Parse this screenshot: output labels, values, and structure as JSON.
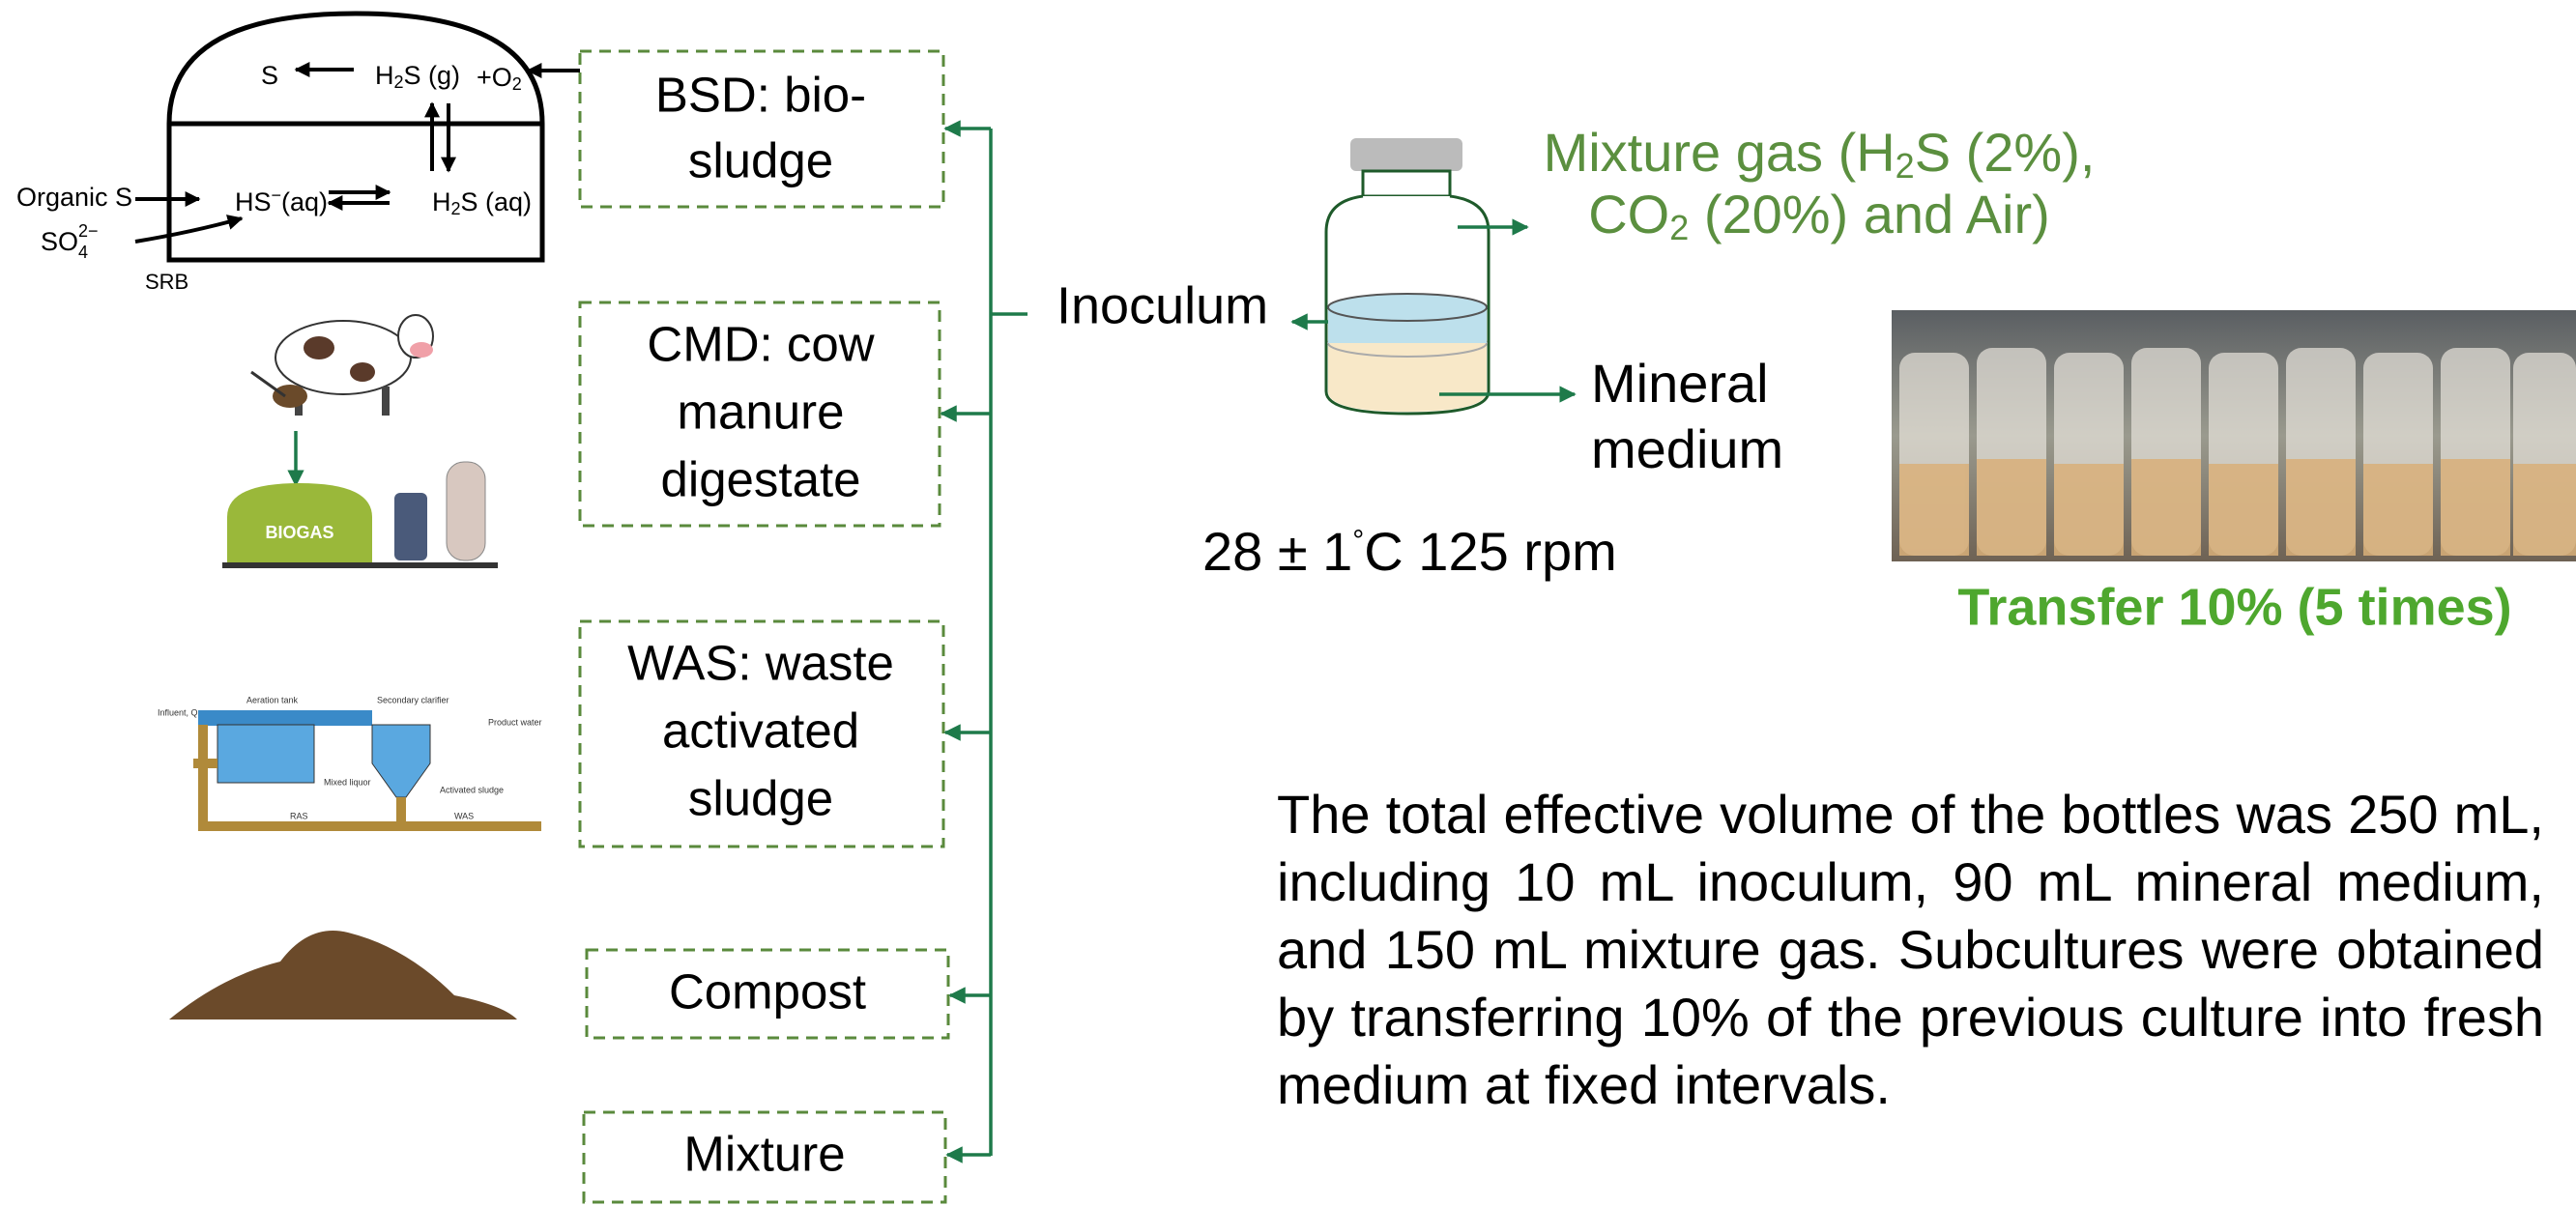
{
  "reactor": {
    "s": "S",
    "h2s_g": [
      "H",
      "2",
      "S (g)"
    ],
    "o2": [
      "+O",
      "2"
    ],
    "hs_aq": [
      "HS",
      "−",
      "(aq)"
    ],
    "h2s_aq": [
      "H",
      "2",
      "S (aq)"
    ],
    "organic_s": "Organic S",
    "sulfate": [
      "SO",
      "4",
      "2−"
    ],
    "srb": "SRB"
  },
  "sources": [
    {
      "lines": [
        "BSD: bio-",
        "sludge"
      ]
    },
    {
      "lines": [
        "CMD: cow",
        "manure",
        "digestate"
      ]
    },
    {
      "lines": [
        "WAS: waste",
        "activated",
        "sludge"
      ]
    },
    {
      "lines": [
        "Compost"
      ]
    },
    {
      "lines": [
        "Mixture"
      ]
    }
  ],
  "biogas_label": "BIOGAS",
  "was_schematic": {
    "influent": "Influent, Q",
    "aeration_tank": "Aeration tank",
    "secondary_clarifier": "Secondary clarifier",
    "product_water": "Product water",
    "mixed_liquor": "Mixed liquor",
    "activated_sludge": "Activated sludge",
    "ras": "RAS",
    "was": "WAS"
  },
  "inoculum": "Inoculum",
  "gas_label": {
    "line1": [
      "Mixture gas (H",
      "2",
      "S (2%),"
    ],
    "line2": [
      "CO",
      "2",
      " (20%) and Air)"
    ]
  },
  "medium_label": [
    "Mineral",
    "medium"
  ],
  "conditions": [
    "28 ± 1",
    "°",
    "C 125 rpm"
  ],
  "transfer": "Transfer 10% (5 times)",
  "description": "The total effective volume of the bottles was 250 mL, including 10 mL inoculum, 90 mL mineral medium, and 150 mL mixture gas. Subcultures were obtained by transferring 10% of the previous culture into fresh medium at fixed intervals."
}
